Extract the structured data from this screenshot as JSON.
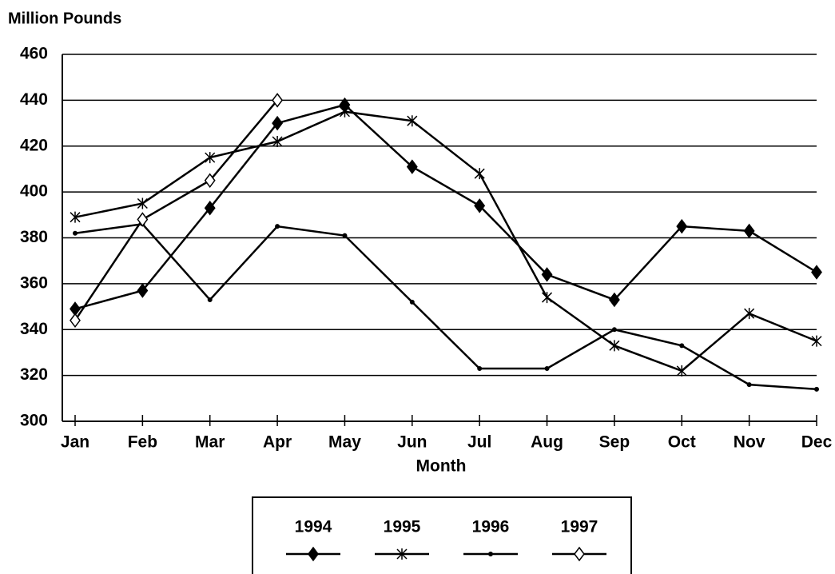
{
  "chart_data": {
    "type": "line",
    "y_label": "Million Pounds",
    "x_label": "Month",
    "categories": [
      "Jan",
      "Feb",
      "Mar",
      "Apr",
      "May",
      "Jun",
      "Jul",
      "Aug",
      "Sep",
      "Oct",
      "Nov",
      "Dec"
    ],
    "series": [
      {
        "name": "1994",
        "color": "#000000",
        "marker": "filled-diamond",
        "values": [
          349,
          357,
          393,
          430,
          438,
          411,
          394,
          364,
          353,
          385,
          383,
          365
        ]
      },
      {
        "name": "1995",
        "color": "#000000",
        "marker": "star",
        "values": [
          389,
          395,
          415,
          422,
          435,
          431,
          408,
          354,
          333,
          322,
          347,
          335
        ]
      },
      {
        "name": "1996",
        "color": "#000000",
        "marker": "dot",
        "values": [
          382,
          386,
          353,
          385,
          381,
          352,
          323,
          323,
          340,
          333,
          316,
          314
        ]
      },
      {
        "name": "1997",
        "color": "#000000",
        "marker": "open-diamond",
        "values": [
          344,
          388,
          405,
          440,
          null,
          null,
          null,
          null,
          null,
          null,
          null,
          null
        ]
      }
    ],
    "ylim": [
      300,
      460
    ],
    "yticks": [
      300,
      320,
      340,
      360,
      380,
      400,
      420,
      440,
      460
    ],
    "grid": true,
    "legend": "bottom"
  }
}
